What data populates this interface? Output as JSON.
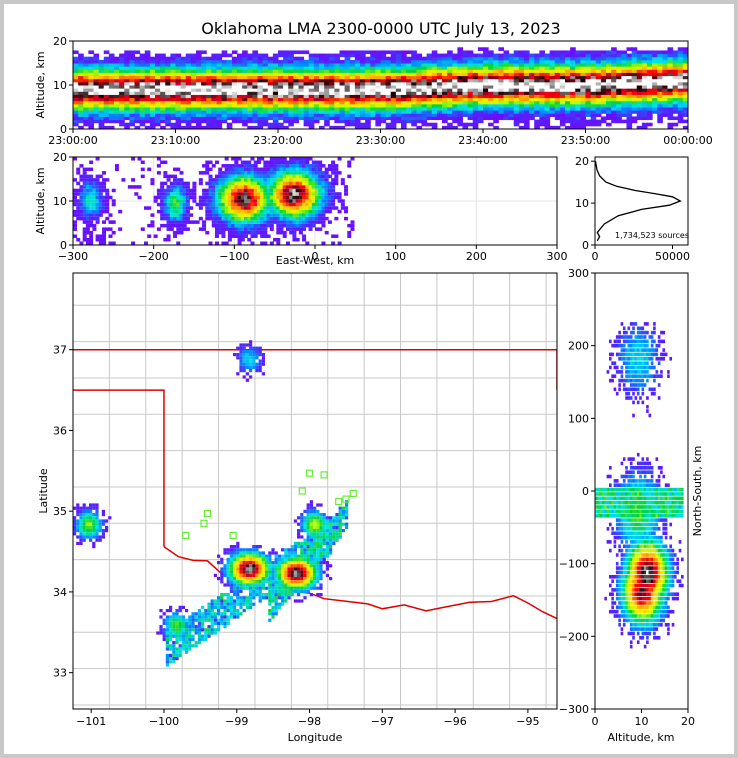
{
  "title": "Oklahoma LMA 2300-0000 UTC July 13, 2023",
  "chart_data": [
    {
      "type": "heatmap",
      "panel": "altitude-time",
      "ylabel": "Altitude, km",
      "ylim": [
        0,
        20
      ],
      "yticks": [
        "0",
        "10",
        "20"
      ],
      "xlim": [
        "23:00:00",
        "00:00:00"
      ],
      "xticks": [
        "23:00:00",
        "23:10:00",
        "23:20:00",
        "23:30:00",
        "23:40:00",
        "23:50:00",
        "00:00:00"
      ],
      "peak_density_altitude_km": [
        9,
        9,
        9,
        9,
        10,
        10,
        11
      ]
    },
    {
      "type": "heatmap",
      "panel": "altitude-east-west",
      "xlabel": "East-West, km",
      "ylabel": "Altitude, km",
      "xlim": [
        -300,
        300
      ],
      "ylim": [
        0,
        20
      ],
      "xticks": [
        "−300",
        "−200",
        "−100",
        "0",
        "100",
        "200",
        "300"
      ],
      "yticks": [
        "0",
        "10",
        "20"
      ],
      "grid": true,
      "cells": [
        {
          "x": -280,
          "z": 10,
          "level": 0.35
        },
        {
          "x": -175,
          "z": 9,
          "level": 0.45
        },
        {
          "x": -90,
          "z": 10,
          "level": 0.95
        },
        {
          "x": -28,
          "z": 11,
          "level": 0.98
        }
      ]
    },
    {
      "type": "line",
      "panel": "altitude-histogram",
      "xlim": [
        0,
        60000
      ],
      "ylim": [
        0,
        21
      ],
      "xticks": [
        "0",
        "50000"
      ],
      "yticks": [
        "0",
        "10",
        "20"
      ],
      "annotation": "1,734,523 sources",
      "series": [
        {
          "x": [
            1500,
            3000,
            1500,
            6000,
            15000,
            30000,
            48000,
            55000,
            50000,
            38000,
            26000,
            14000,
            7000,
            3000,
            1200,
            300
          ],
          "y": [
            1,
            2,
            3,
            5,
            7,
            8.5,
            9.5,
            10.5,
            11.5,
            12.3,
            13,
            14,
            15,
            16.5,
            18,
            20
          ]
        }
      ]
    },
    {
      "type": "scatter",
      "panel": "plan-view-map",
      "xlabel": "Longitude",
      "ylabel": "Latitude",
      "xlim": [
        -101.25,
        -94.6
      ],
      "ylim": [
        32.55,
        37.95
      ],
      "xticks": [
        "−101",
        "−100",
        "−99",
        "−98",
        "−97",
        "−96",
        "−95"
      ],
      "yticks": [
        "33",
        "34",
        "35",
        "36",
        "37"
      ],
      "lightning_cells": [
        {
          "lon": -98.85,
          "lat": 34.3,
          "level": 0.97
        },
        {
          "lon": -98.2,
          "lat": 34.25,
          "level": 0.97
        },
        {
          "lon": -97.95,
          "lat": 34.85,
          "level": 0.55
        },
        {
          "lon": -99.85,
          "lat": 33.6,
          "level": 0.45
        },
        {
          "lon": -101.05,
          "lat": 34.85,
          "level": 0.5
        },
        {
          "lon": -98.85,
          "lat": 36.9,
          "level": 0.3
        }
      ],
      "station_markers": [
        {
          "lon": -98.0,
          "lat": 35.47
        },
        {
          "lon": -97.8,
          "lat": 35.45
        },
        {
          "lon": -98.1,
          "lat": 35.25
        },
        {
          "lon": -97.4,
          "lat": 35.22
        },
        {
          "lon": -97.5,
          "lat": 35.15
        },
        {
          "lon": -99.4,
          "lat": 34.97
        },
        {
          "lon": -99.45,
          "lat": 34.85
        },
        {
          "lon": -99.05,
          "lat": 34.7
        },
        {
          "lon": -99.7,
          "lat": 34.7
        },
        {
          "lon": -97.6,
          "lat": 35.12
        }
      ]
    },
    {
      "type": "heatmap",
      "panel": "north-south-altitude",
      "xlabel": "Altitude, km",
      "ylabel": "North-South, km",
      "xlim": [
        0,
        20
      ],
      "ylim": [
        -300,
        300
      ],
      "xticks": [
        "0",
        "10",
        "20"
      ],
      "yticks": [
        "−300",
        "−200",
        "−100",
        "0",
        "100",
        "200",
        "300"
      ],
      "cells": [
        {
          "ns": -115,
          "z": 11,
          "level": 0.97
        },
        {
          "ns": -140,
          "z": 10,
          "level": 0.9
        },
        {
          "ns": -30,
          "z": 9,
          "level": 0.45
        },
        {
          "ns": 180,
          "z": 9,
          "level": 0.3
        }
      ]
    }
  ]
}
